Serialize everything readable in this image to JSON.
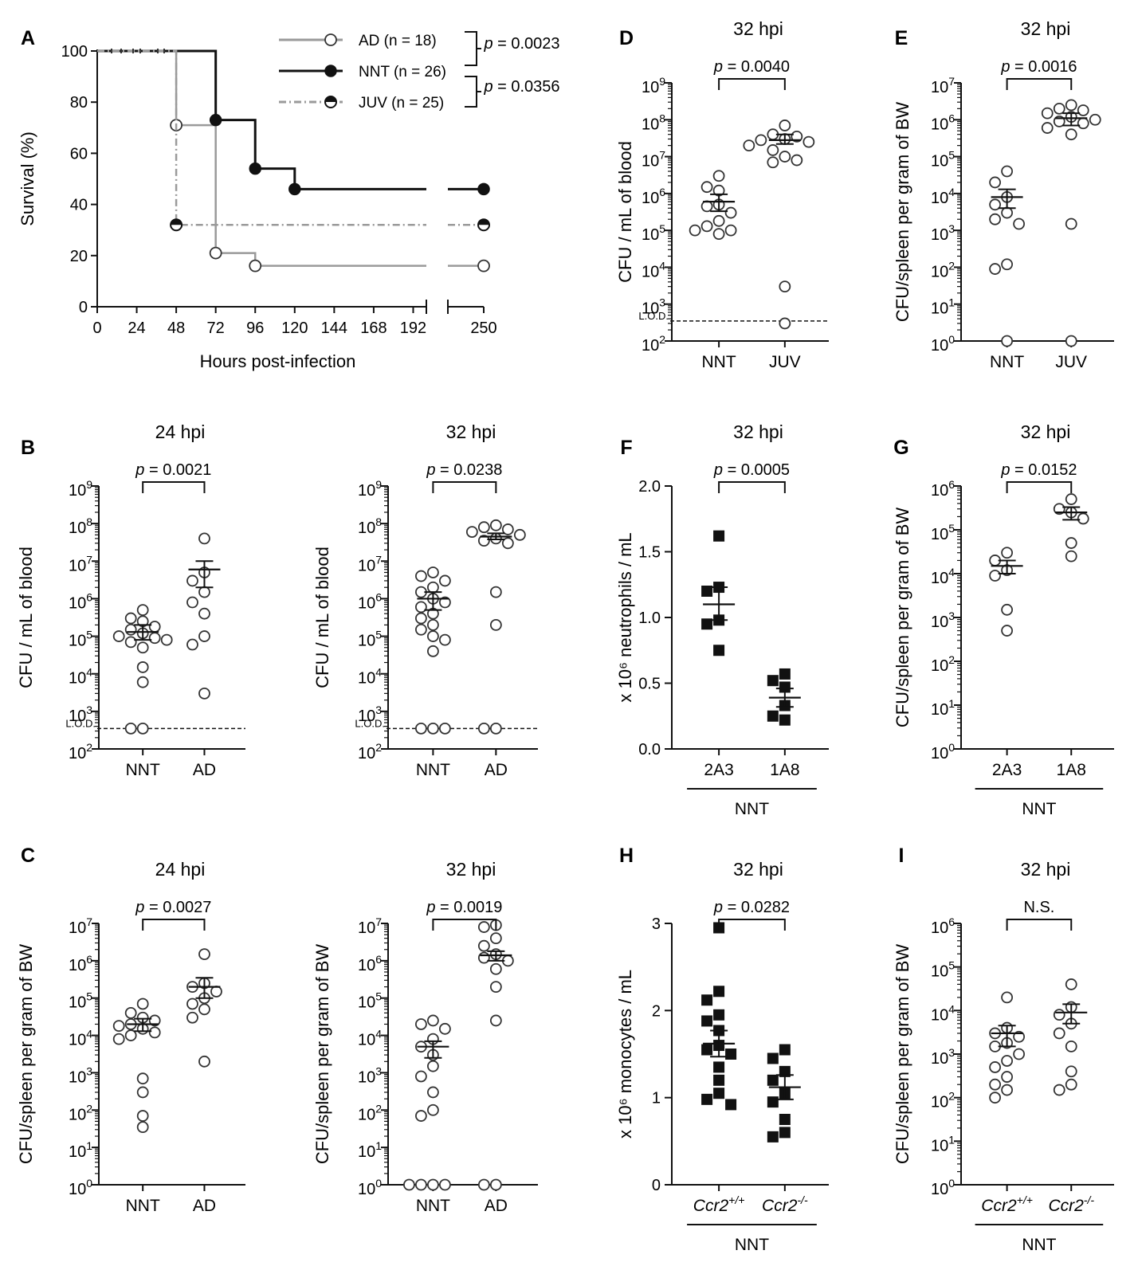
{
  "figure": {
    "panels": [
      {
        "id": "A",
        "letter": "A"
      },
      {
        "id": "D",
        "letter": "D",
        "title": "32 hpi",
        "ylabel": "CFU / mL of blood",
        "p_text": "p = 0.0040"
      },
      {
        "id": "E",
        "letter": "E",
        "title": "32 hpi",
        "ylabel": "CFU/spleen per gram of BW",
        "p_text": "p = 0.0016"
      },
      {
        "id": "B1",
        "letter": "B",
        "title": "24 hpi",
        "ylabel": "CFU / mL of blood",
        "p_text": "p = 0.0021"
      },
      {
        "id": "B2",
        "letter": "",
        "title": "32 hpi",
        "ylabel": "CFU / mL of blood",
        "p_text": "p = 0.0238"
      },
      {
        "id": "F",
        "letter": "F",
        "title": "32 hpi",
        "ylabel": "x 10⁶ neutrophils / mL",
        "p_text": "p = 0.0005",
        "group_label": "NNT"
      },
      {
        "id": "G",
        "letter": "G",
        "title": "32 hpi",
        "ylabel": "CFU/spleen per gram of BW",
        "p_text": "p = 0.0152",
        "group_label": "NNT"
      },
      {
        "id": "C1",
        "letter": "C",
        "title": "24 hpi",
        "ylabel": "CFU/spleen per gram of BW",
        "p_text": "p = 0.0027"
      },
      {
        "id": "C2",
        "letter": "",
        "title": "32 hpi",
        "ylabel": "CFU/spleen per gram of BW",
        "p_text": "p = 0.0019"
      },
      {
        "id": "H",
        "letter": "H",
        "title": "32 hpi",
        "ylabel": "x 10⁶ monocytes / mL",
        "p_text": "p = 0.0282",
        "group_label": "NNT"
      },
      {
        "id": "I",
        "letter": "I",
        "title": "32 hpi",
        "ylabel": "CFU/spleen per gram of BW",
        "p_text": "N.S.",
        "group_label": "NNT"
      }
    ]
  },
  "chart_data": [
    {
      "panel": "A",
      "type": "line",
      "xlabel": "Hours post-infection",
      "ylabel": "Survival (%)",
      "xticks": [
        "0",
        "24",
        "48",
        "72",
        "96",
        "120",
        "144",
        "168",
        "192",
        "250"
      ],
      "ylim": [
        0,
        100
      ],
      "yticks": [
        "0",
        "20",
        "40",
        "60",
        "80",
        "100"
      ],
      "series": [
        {
          "name": "AD (n = 18)",
          "color": "#9a9a9a",
          "marker": "open-circle",
          "steps": [
            [
              0,
              100
            ],
            [
              48,
              100
            ],
            [
              48,
              71
            ],
            [
              72,
              71
            ],
            [
              72,
              21
            ],
            [
              96,
              21
            ],
            [
              96,
              16
            ],
            [
              250,
              16
            ]
          ],
          "points": [
            [
              48,
              71
            ],
            [
              72,
              21
            ],
            [
              96,
              16
            ],
            [
              250,
              16
            ]
          ]
        },
        {
          "name": "NNT (n = 26)",
          "color": "#111111",
          "marker": "filled-circle",
          "steps": [
            [
              0,
              100
            ],
            [
              72,
              100
            ],
            [
              72,
              73
            ],
            [
              96,
              73
            ],
            [
              96,
              54
            ],
            [
              120,
              54
            ],
            [
              120,
              46
            ],
            [
              250,
              46
            ]
          ],
          "points": [
            [
              72,
              73
            ],
            [
              96,
              54
            ],
            [
              120,
              46
            ],
            [
              250,
              46
            ]
          ]
        },
        {
          "name": "JUV (n = 25)",
          "color": "#9a9a9a",
          "marker": "half-circle",
          "dash": "dash-dot",
          "steps": [
            [
              0,
              100
            ],
            [
              48,
              100
            ],
            [
              48,
              32
            ],
            [
              250,
              32
            ]
          ],
          "points": [
            [
              48,
              32
            ],
            [
              250,
              32
            ]
          ]
        }
      ],
      "comparisons": [
        {
          "groups": [
            "AD",
            "NNT"
          ],
          "p_text": "p = 0.0023"
        },
        {
          "groups": [
            "NNT",
            "JUV"
          ],
          "p_text": "p = 0.0356"
        }
      ]
    },
    {
      "panel": "D",
      "type": "scatter",
      "scale": "log",
      "ylim_exp": [
        2,
        9
      ],
      "lod": true,
      "lod_label": "L.O.D.",
      "categories": [
        "NNT",
        "JUV"
      ],
      "groups": [
        {
          "name": "NNT",
          "marker": "open-circle",
          "mean": 600000,
          "sem": [
            330000,
            950000
          ],
          "values": [
            3000000,
            1500000,
            1200000,
            500000,
            450000,
            300000,
            180000,
            130000,
            100000,
            80000,
            100000
          ]
        },
        {
          "name": "JUV",
          "marker": "open-circle",
          "mean": 28000000,
          "sem": [
            22000000,
            40000000
          ],
          "values": [
            70000000,
            40000000,
            35000000,
            30000000,
            28000000,
            25000000,
            20000000,
            15000000,
            10000000,
            8000000,
            7000000,
            3000,
            300
          ]
        }
      ]
    },
    {
      "panel": "E",
      "type": "scatter",
      "scale": "log",
      "ylim_exp": [
        0,
        7
      ],
      "categories": [
        "NNT",
        "JUV"
      ],
      "groups": [
        {
          "name": "NNT",
          "marker": "open-circle",
          "mean": 8000,
          "sem": [
            4000,
            13000
          ],
          "values": [
            40000,
            20000,
            8000,
            5000,
            3000,
            2000,
            1500,
            120,
            90,
            1
          ]
        },
        {
          "name": "JUV",
          "marker": "open-circle",
          "mean": 1100000,
          "sem": [
            700000,
            1500000
          ],
          "values": [
            2500000,
            2000000,
            1800000,
            1500000,
            1200000,
            1000000,
            900000,
            800000,
            600000,
            400000,
            1500,
            1
          ]
        }
      ]
    },
    {
      "panel": "B1",
      "type": "scatter",
      "scale": "log",
      "ylim_exp": [
        2,
        9
      ],
      "lod": true,
      "lod_label": "L.O.D.",
      "categories": [
        "NNT",
        "AD"
      ],
      "groups": [
        {
          "name": "NNT",
          "marker": "open-circle",
          "mean": 130000,
          "sem": [
            80000,
            200000
          ],
          "values": [
            500000,
            300000,
            250000,
            180000,
            150000,
            120000,
            100000,
            90000,
            80000,
            70000,
            50000,
            15000,
            6000,
            350,
            350
          ]
        },
        {
          "name": "AD",
          "marker": "open-circle",
          "mean": 6000000,
          "sem": [
            2000000,
            10000000
          ],
          "values": [
            40000000,
            5000000,
            3000000,
            1500000,
            800000,
            400000,
            100000,
            60000,
            3000
          ]
        }
      ]
    },
    {
      "panel": "B2",
      "type": "scatter",
      "scale": "log",
      "ylim_exp": [
        2,
        9
      ],
      "lod": true,
      "lod_label": "L.O.D.",
      "categories": [
        "NNT",
        "AD"
      ],
      "groups": [
        {
          "name": "NNT",
          "marker": "open-circle",
          "mean": 1000000,
          "sem": [
            500000,
            1500000
          ],
          "values": [
            5000000,
            4000000,
            3000000,
            2000000,
            1500000,
            1000000,
            800000,
            600000,
            400000,
            300000,
            200000,
            150000,
            100000,
            80000,
            40000,
            350,
            350,
            350
          ]
        },
        {
          "name": "AD",
          "marker": "open-circle",
          "mean": 45000000,
          "sem": [
            38000000,
            55000000
          ],
          "values": [
            90000000,
            80000000,
            70000000,
            60000000,
            50000000,
            40000000,
            35000000,
            30000000,
            1500000,
            200000,
            350,
            350
          ]
        }
      ]
    },
    {
      "panel": "F",
      "type": "scatter",
      "scale": "linear",
      "ylim": [
        0,
        2
      ],
      "yticks": [
        "0.0",
        "0.5",
        "1.0",
        "1.5",
        "2.0"
      ],
      "categories": [
        "2A3",
        "1A8"
      ],
      "groups": [
        {
          "name": "2A3",
          "marker": "filled-square",
          "mean": 1.1,
          "sem": [
            0.98,
            1.23
          ],
          "values": [
            1.62,
            1.23,
            1.2,
            0.98,
            0.95,
            0.75
          ]
        },
        {
          "name": "1A8",
          "marker": "filled-square",
          "mean": 0.39,
          "sem": [
            0.32,
            0.46
          ],
          "values": [
            0.57,
            0.52,
            0.47,
            0.33,
            0.25,
            0.22
          ]
        }
      ]
    },
    {
      "panel": "G",
      "type": "scatter",
      "scale": "log",
      "ylim_exp": [
        0,
        6
      ],
      "categories": [
        "2A3",
        "1A8"
      ],
      "groups": [
        {
          "name": "2A3",
          "marker": "open-circle",
          "mean": 15000,
          "sem": [
            10000,
            20000
          ],
          "values": [
            30000,
            20000,
            12000,
            9000,
            1500,
            500
          ]
        },
        {
          "name": "1A8",
          "marker": "open-circle",
          "mean": 250000,
          "sem": [
            170000,
            330000
          ],
          "values": [
            500000,
            300000,
            250000,
            180000,
            50000,
            25000
          ]
        }
      ]
    },
    {
      "panel": "C1",
      "type": "scatter",
      "scale": "log",
      "ylim_exp": [
        0,
        7
      ],
      "categories": [
        "NNT",
        "AD"
      ],
      "groups": [
        {
          "name": "NNT",
          "marker": "open-circle",
          "mean": 20000,
          "sem": [
            13000,
            28000
          ],
          "values": [
            70000,
            40000,
            30000,
            25000,
            20000,
            18000,
            15000,
            12000,
            10000,
            8000,
            700,
            300,
            70,
            35
          ]
        },
        {
          "name": "AD",
          "marker": "open-circle",
          "mean": 200000,
          "sem": [
            100000,
            350000
          ],
          "values": [
            1500000,
            250000,
            200000,
            150000,
            100000,
            70000,
            50000,
            30000,
            2000
          ]
        }
      ]
    },
    {
      "panel": "C2",
      "type": "scatter",
      "scale": "log",
      "ylim_exp": [
        0,
        7
      ],
      "categories": [
        "NNT",
        "AD"
      ],
      "groups": [
        {
          "name": "NNT",
          "marker": "open-circle",
          "mean": 5000,
          "sem": [
            2500,
            7000
          ],
          "values": [
            25000,
            20000,
            15000,
            8000,
            5000,
            3000,
            1500,
            800,
            300,
            100,
            70,
            1,
            1,
            1,
            1
          ]
        },
        {
          "name": "AD",
          "marker": "open-circle",
          "mean": 1400000,
          "sem": [
            1000000,
            1800000
          ],
          "values": [
            9000000,
            8000000,
            4000000,
            2500000,
            1500000,
            1200000,
            1000000,
            600000,
            200000,
            25000,
            1,
            1
          ]
        }
      ]
    },
    {
      "panel": "H",
      "type": "scatter",
      "scale": "linear",
      "ylim": [
        0,
        3
      ],
      "yticks": [
        "0",
        "1",
        "2",
        "3"
      ],
      "categories": [
        "Ccr2+/+",
        "Ccr2-/-"
      ],
      "groups": [
        {
          "name": "Ccr2+/+",
          "marker": "filled-square",
          "mean": 1.62,
          "sem": [
            1.47,
            1.77
          ],
          "values": [
            2.95,
            2.22,
            2.12,
            1.95,
            1.88,
            1.77,
            1.6,
            1.55,
            1.5,
            1.35,
            1.2,
            1.05,
            0.98,
            0.92
          ]
        },
        {
          "name": "Ccr2-/-",
          "marker": "filled-square",
          "mean": 1.12,
          "sem": [
            0.98,
            1.26
          ],
          "values": [
            1.55,
            1.45,
            1.3,
            1.2,
            1.05,
            0.95,
            0.75,
            0.6,
            0.55
          ]
        }
      ]
    },
    {
      "panel": "I",
      "type": "scatter",
      "scale": "log",
      "ylim_exp": [
        0,
        6
      ],
      "categories": [
        "Ccr2+/+",
        "Ccr2-/-"
      ],
      "groups": [
        {
          "name": "Ccr2+/+",
          "marker": "open-circle",
          "mean": 3000,
          "sem": [
            1500,
            4500
          ],
          "values": [
            20000,
            4000,
            3000,
            2500,
            1800,
            1500,
            1000,
            700,
            500,
            300,
            200,
            150,
            100
          ]
        },
        {
          "name": "Ccr2-/-",
          "marker": "open-circle",
          "mean": 9000,
          "sem": [
            5000,
            14000
          ],
          "values": [
            40000,
            12000,
            8000,
            5000,
            3000,
            1500,
            400,
            200,
            150
          ]
        }
      ]
    }
  ]
}
